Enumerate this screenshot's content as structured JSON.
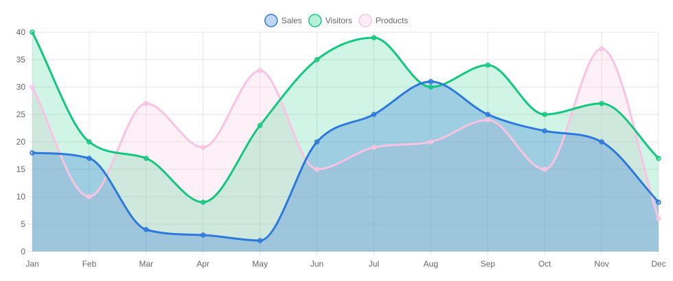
{
  "chart_data": {
    "type": "area",
    "categories": [
      "Jan",
      "Feb",
      "Mar",
      "Apr",
      "May",
      "Jun",
      "Jul",
      "Aug",
      "Sep",
      "Oct",
      "Nov",
      "Dec"
    ],
    "ylim": [
      0,
      40
    ],
    "y_ticks": [
      0,
      5,
      10,
      15,
      20,
      25,
      30,
      35,
      40
    ],
    "grid": true,
    "legend_position": "top-center",
    "smooth": true,
    "series": [
      {
        "name": "Sales",
        "values": [
          18,
          17,
          4,
          3,
          2,
          20,
          25,
          31,
          25,
          22,
          20,
          9
        ],
        "stroke": "#2c78dc",
        "fill": "#2c78dc",
        "fill_opacity": 0.3
      },
      {
        "name": "Visitors",
        "values": [
          40,
          20,
          17,
          9,
          23,
          35,
          39,
          30,
          34,
          25,
          27,
          17
        ],
        "stroke": "#12c77e",
        "fill": "#12c77e",
        "fill_opacity": 0.2
      },
      {
        "name": "Products",
        "values": [
          30,
          10,
          27,
          19,
          33,
          15,
          19,
          20,
          24,
          15,
          37,
          6
        ],
        "stroke": "#f9c3e1",
        "fill": "#f9c3e1",
        "fill_opacity": 0.25
      }
    ]
  }
}
